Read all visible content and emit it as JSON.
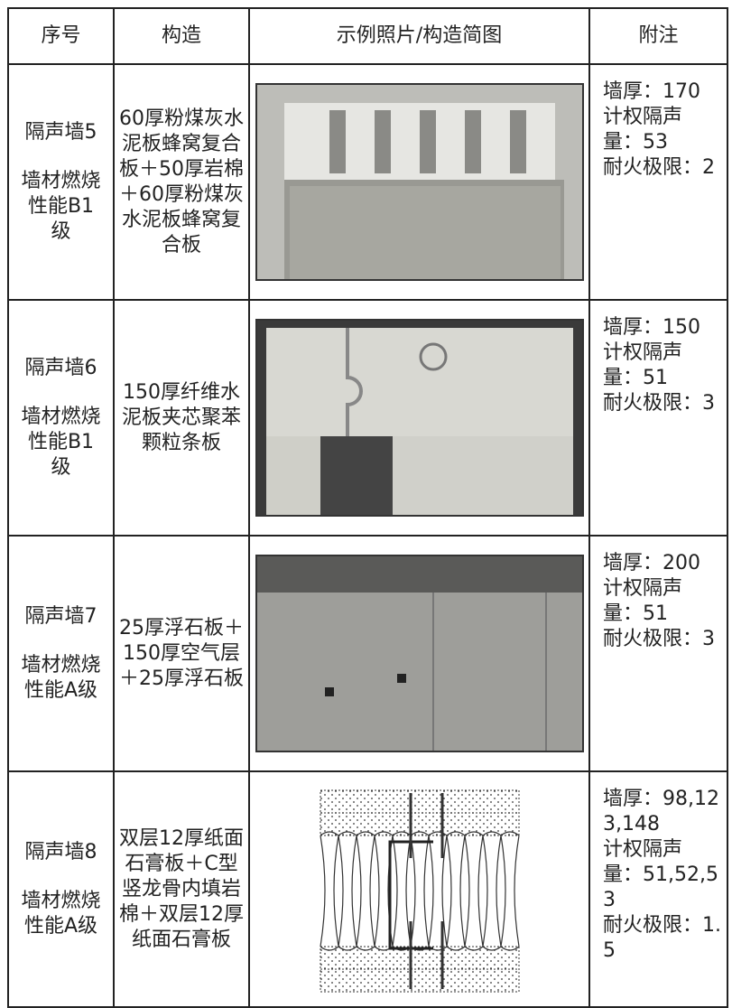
{
  "table": {
    "headers": [
      "序号",
      "构造",
      "示例照片/构造简图",
      "附注"
    ],
    "rows": [
      {
        "name": "隔声墙5",
        "rating": "墙材燃烧性能B1级",
        "construction": "60厚粉煤灰水泥板蜂窝复合板＋50厚岩棉＋60厚粉煤灰水泥板蜂窝复合板",
        "notes": [
          "墙厚：170",
          "计权隔声量：53",
          "耐火极限：2"
        ]
      },
      {
        "name": "隔声墙6",
        "rating": "墙材燃烧性能B1级",
        "construction": "150厚纤维水泥板夹芯聚苯颗粒条板",
        "notes": [
          "墙厚：150",
          "计权隔声量：51",
          "耐火极限：3"
        ]
      },
      {
        "name": "隔声墙7",
        "rating": "墙材燃烧性能A级",
        "construction": "25厚浮石板＋150厚空气层＋25厚浮石板",
        "notes": [
          "墙厚：200",
          "计权隔声量：51",
          "耐火极限：3"
        ]
      },
      {
        "name": "隔声墙8",
        "rating": "墙材燃烧性能A级",
        "construction": "双层12厚纸面石膏板＋C型竖龙骨内填岩棉＋双层12厚纸面石膏板",
        "notes": [
          "墙厚：98,123,148",
          "计权隔声量：51,52,53",
          "耐火极限：1.5"
        ]
      }
    ]
  }
}
